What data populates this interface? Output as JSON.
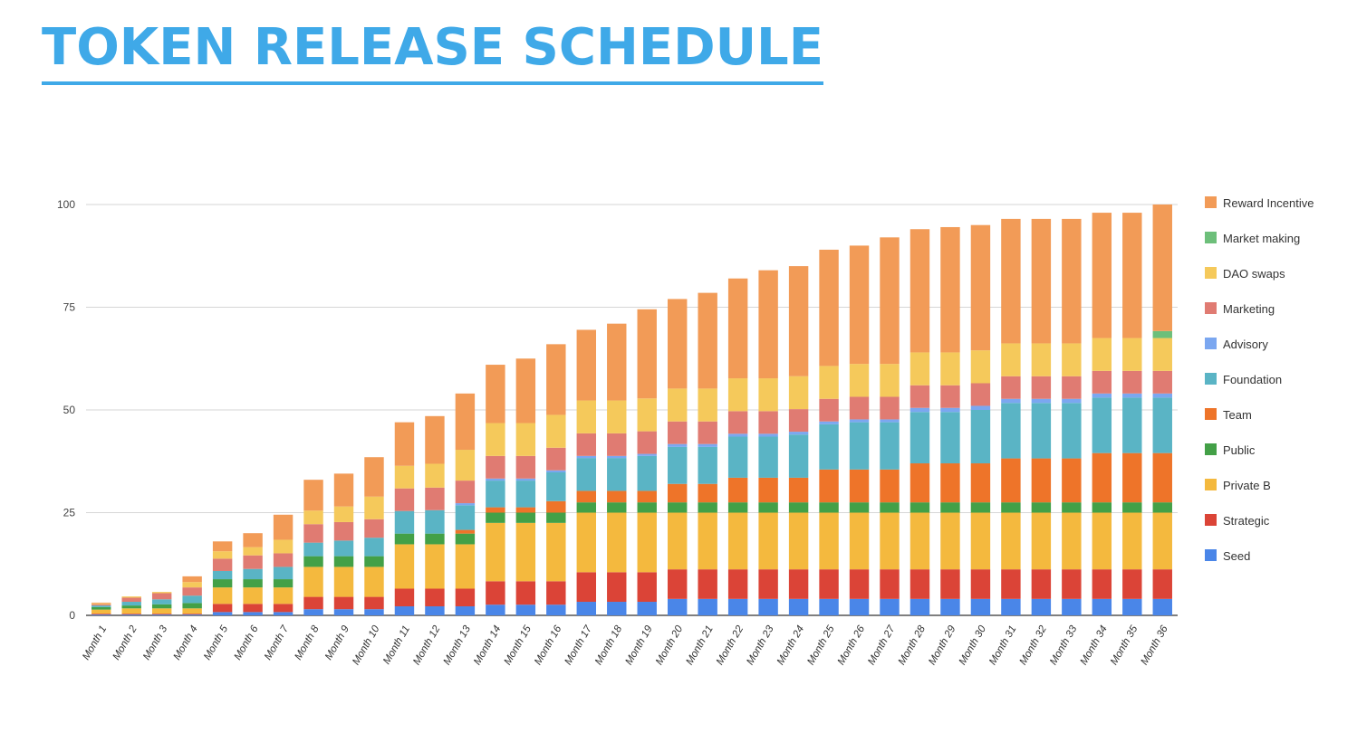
{
  "chart_data": {
    "type": "bar",
    "stacked": true,
    "title": "TOKEN RELEASE SCHEDULE",
    "xlabel": "",
    "ylabel": "",
    "ylim": [
      0,
      100
    ],
    "yticks": [
      "0",
      "25",
      "50",
      "75",
      "100"
    ],
    "grid": true,
    "legend_position": "right",
    "categories": [
      "Month 1",
      "Month 2",
      "Month 3",
      "Month 4",
      "Month 5",
      "Month 6",
      "Month 7",
      "Month 8",
      "Month 9",
      "Month 10",
      "Month 11",
      "Month 12",
      "Month 13",
      "Month 14",
      "Month 15",
      "Month 16",
      "Month 17",
      "Month 18",
      "Month 19",
      "Month 20",
      "Month 21",
      "Month 22",
      "Month 23",
      "Month 24",
      "Month 25",
      "Month 26",
      "Month 27",
      "Month 28",
      "Month 29",
      "Month 30",
      "Month 31",
      "Month 32",
      "Month 33",
      "Month 34",
      "Month 35",
      "Month 36"
    ],
    "series": [
      {
        "name": "Seed",
        "color": "#4a86e8",
        "values": [
          0.2,
          0.2,
          0.2,
          0.2,
          0.8,
          0.8,
          0.8,
          1.5,
          1.5,
          1.5,
          2.2,
          2.2,
          2.2,
          2.6,
          2.6,
          2.6,
          3.3,
          3.3,
          3.3,
          4,
          4,
          4,
          4,
          4,
          4,
          4,
          4,
          4,
          4,
          4,
          4,
          4,
          4,
          4,
          4,
          4
        ]
      },
      {
        "name": "Strategic",
        "color": "#db4437",
        "values": [
          0.2,
          0.2,
          0.2,
          0.2,
          2,
          2,
          2,
          3,
          3,
          3,
          4.3,
          4.3,
          4.3,
          5.7,
          5.7,
          5.7,
          7.2,
          7.2,
          7.2,
          7.2,
          7.2,
          7.2,
          7.2,
          7.2,
          7.2,
          7.2,
          7.2,
          7.2,
          7.2,
          7.2,
          7.2,
          7.2,
          7.2,
          7.2,
          7.2,
          7.2
        ]
      },
      {
        "name": "Private B",
        "color": "#f4b93e",
        "values": [
          1,
          1.3,
          1.3,
          1.3,
          4,
          4,
          4,
          7.3,
          7.3,
          7.3,
          10.8,
          10.8,
          10.8,
          14.2,
          14.2,
          14.2,
          14.5,
          14.5,
          14.5,
          13.8,
          13.8,
          13.8,
          13.8,
          13.8,
          13.8,
          13.8,
          13.8,
          13.8,
          13.8,
          13.8,
          13.8,
          13.8,
          13.8,
          13.8,
          13.8,
          13.8
        ]
      },
      {
        "name": "Public",
        "color": "#43a047",
        "values": [
          0.6,
          0.7,
          1,
          1.3,
          2,
          2,
          2,
          2.6,
          2.6,
          2.6,
          2.6,
          2.6,
          2.6,
          2.5,
          2.5,
          2.5,
          2.5,
          2.5,
          2.5,
          2.5,
          2.5,
          2.5,
          2.5,
          2.5,
          2.5,
          2.5,
          2.5,
          2.5,
          2.5,
          2.5,
          2.5,
          2.5,
          2.5,
          2.5,
          2.5,
          2.5
        ]
      },
      {
        "name": "Team",
        "color": "#ee7429",
        "values": [
          0,
          0,
          0,
          0,
          0,
          0,
          0,
          0,
          0,
          0,
          0,
          0,
          0.9,
          1.3,
          1.3,
          2.8,
          2.8,
          2.8,
          2.8,
          4.5,
          4.5,
          6,
          6,
          6,
          8,
          8,
          8,
          9.5,
          9.5,
          9.5,
          10.7,
          10.7,
          10.7,
          12,
          12,
          12
        ]
      },
      {
        "name": "Foundation",
        "color": "#5ab4c5",
        "values": [
          0.4,
          0.9,
          1.2,
          1.8,
          2,
          2.5,
          3,
          3.3,
          3.8,
          4.5,
          5.5,
          5.7,
          6,
          6.5,
          6.5,
          7,
          8,
          8,
          8.5,
          9,
          9,
          10,
          10,
          10.5,
          11,
          11.5,
          11.5,
          12.5,
          12.5,
          13,
          13.5,
          13.5,
          13.5,
          13.5,
          13.5,
          13.5
        ]
      },
      {
        "name": "Advisory",
        "color": "#7ba7f0",
        "values": [
          0,
          0,
          0,
          0,
          0,
          0,
          0,
          0,
          0,
          0,
          0,
          0,
          0.5,
          0.5,
          0.5,
          0.5,
          0.5,
          0.5,
          0.5,
          0.7,
          0.7,
          0.7,
          0.7,
          0.7,
          0.7,
          0.7,
          0.7,
          1,
          1,
          1,
          1,
          1,
          1,
          1,
          1,
          1
        ]
      },
      {
        "name": "Marketing",
        "color": "#e07b72",
        "values": [
          0.3,
          1,
          1.5,
          2,
          3,
          3.3,
          3.3,
          4.5,
          4.5,
          4.5,
          5.5,
          5.5,
          5.5,
          5.5,
          5.5,
          5.5,
          5.5,
          5.5,
          5.5,
          5.5,
          5.5,
          5.5,
          5.5,
          5.5,
          5.5,
          5.5,
          5.5,
          5.5,
          5.5,
          5.5,
          5.5,
          5.5,
          5.5,
          5.5,
          5.5,
          5.5
        ]
      },
      {
        "name": "DAO swaps",
        "color": "#f5c95b",
        "values": [
          0.2,
          0.3,
          0.3,
          1.3,
          1.8,
          2,
          3.3,
          3.3,
          3.8,
          5.5,
          5.5,
          5.8,
          7.5,
          8,
          8,
          8,
          8,
          8,
          8,
          8,
          8,
          8,
          8,
          8,
          8,
          8,
          8,
          8,
          8,
          8,
          8,
          8,
          8,
          8,
          8,
          8
        ]
      },
      {
        "name": "Market making",
        "color": "#6dbf7a",
        "values": [
          0,
          0,
          0,
          0,
          0,
          0,
          0,
          0,
          0,
          0,
          0,
          0,
          0,
          0,
          0,
          0,
          0,
          0,
          0,
          0,
          0,
          0,
          0,
          0,
          0,
          0,
          0,
          0,
          0,
          0,
          0,
          0,
          0,
          0,
          0,
          1.7
        ]
      },
      {
        "name": "Reward Incentive",
        "color": "#f29b57",
        "values": [
          0.2,
          0,
          0,
          1.4,
          2.4,
          3.4,
          6.1,
          7.5,
          8,
          9.6,
          10.6,
          11.6,
          13.7,
          14.2,
          15.7,
          17.2,
          17.2,
          18.7,
          21.7,
          21.8,
          23.3,
          24.3,
          26.3,
          26.8,
          28.3,
          28.8,
          30.8,
          30,
          30.5,
          30.5,
          30.3,
          30.3,
          30.3,
          30.5,
          30.5,
          30.8
        ]
      }
    ]
  }
}
